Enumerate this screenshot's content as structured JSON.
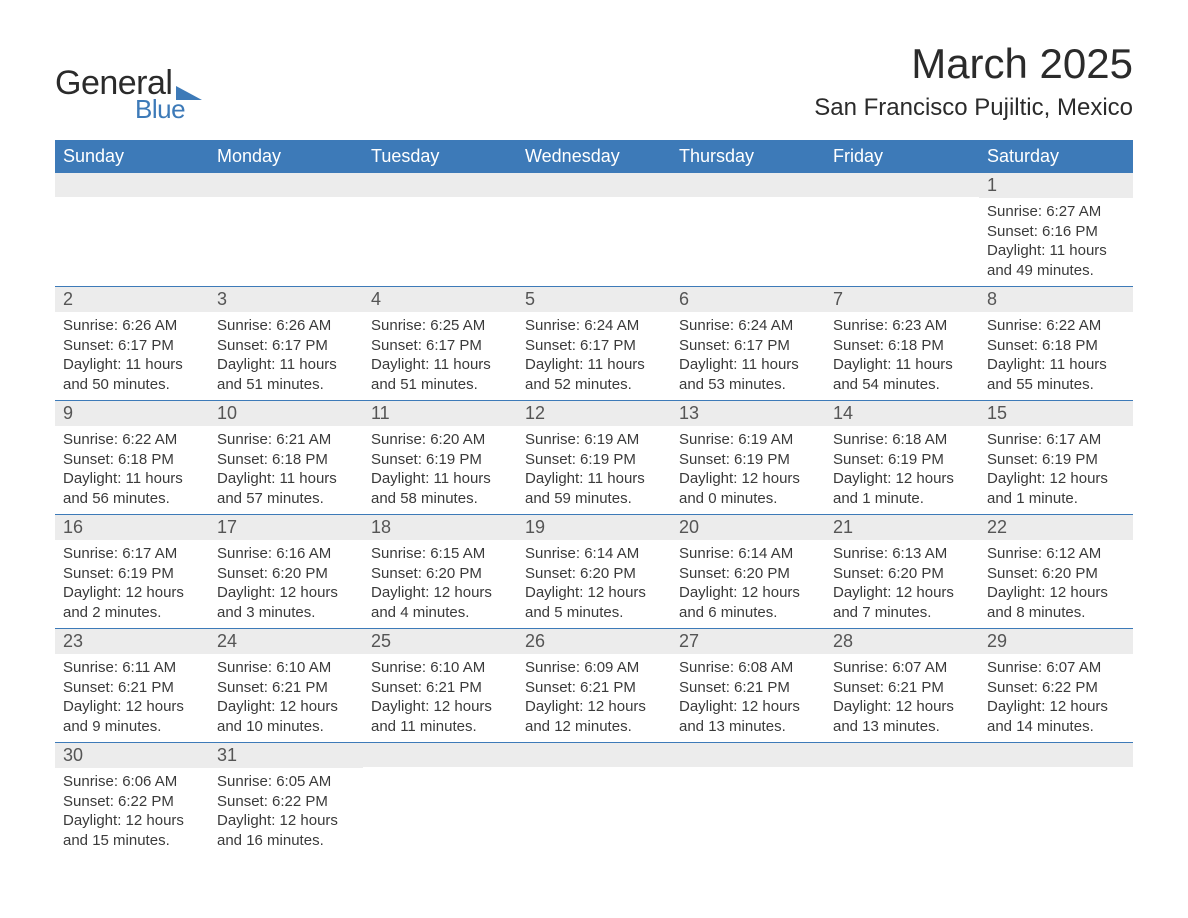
{
  "logo": {
    "text1": "General",
    "text2": "Blue",
    "shape_color": "#3d7ab8"
  },
  "header": {
    "month_title": "March 2025",
    "location": "San Francisco Pujiltic, Mexico"
  },
  "colors": {
    "header_bg": "#3d7ab8",
    "header_text": "#ffffff",
    "daynum_bg": "#ececec",
    "daynum_text": "#555555",
    "body_text": "#3a3a3a",
    "divider": "#3d7ab8"
  },
  "day_headers": [
    "Sunday",
    "Monday",
    "Tuesday",
    "Wednesday",
    "Thursday",
    "Friday",
    "Saturday"
  ],
  "weeks": [
    [
      {
        "num": "",
        "sunrise": "",
        "sunset": "",
        "daylight1": "",
        "daylight2": ""
      },
      {
        "num": "",
        "sunrise": "",
        "sunset": "",
        "daylight1": "",
        "daylight2": ""
      },
      {
        "num": "",
        "sunrise": "",
        "sunset": "",
        "daylight1": "",
        "daylight2": ""
      },
      {
        "num": "",
        "sunrise": "",
        "sunset": "",
        "daylight1": "",
        "daylight2": ""
      },
      {
        "num": "",
        "sunrise": "",
        "sunset": "",
        "daylight1": "",
        "daylight2": ""
      },
      {
        "num": "",
        "sunrise": "",
        "sunset": "",
        "daylight1": "",
        "daylight2": ""
      },
      {
        "num": "1",
        "sunrise": "Sunrise: 6:27 AM",
        "sunset": "Sunset: 6:16 PM",
        "daylight1": "Daylight: 11 hours",
        "daylight2": "and 49 minutes."
      }
    ],
    [
      {
        "num": "2",
        "sunrise": "Sunrise: 6:26 AM",
        "sunset": "Sunset: 6:17 PM",
        "daylight1": "Daylight: 11 hours",
        "daylight2": "and 50 minutes."
      },
      {
        "num": "3",
        "sunrise": "Sunrise: 6:26 AM",
        "sunset": "Sunset: 6:17 PM",
        "daylight1": "Daylight: 11 hours",
        "daylight2": "and 51 minutes."
      },
      {
        "num": "4",
        "sunrise": "Sunrise: 6:25 AM",
        "sunset": "Sunset: 6:17 PM",
        "daylight1": "Daylight: 11 hours",
        "daylight2": "and 51 minutes."
      },
      {
        "num": "5",
        "sunrise": "Sunrise: 6:24 AM",
        "sunset": "Sunset: 6:17 PM",
        "daylight1": "Daylight: 11 hours",
        "daylight2": "and 52 minutes."
      },
      {
        "num": "6",
        "sunrise": "Sunrise: 6:24 AM",
        "sunset": "Sunset: 6:17 PM",
        "daylight1": "Daylight: 11 hours",
        "daylight2": "and 53 minutes."
      },
      {
        "num": "7",
        "sunrise": "Sunrise: 6:23 AM",
        "sunset": "Sunset: 6:18 PM",
        "daylight1": "Daylight: 11 hours",
        "daylight2": "and 54 minutes."
      },
      {
        "num": "8",
        "sunrise": "Sunrise: 6:22 AM",
        "sunset": "Sunset: 6:18 PM",
        "daylight1": "Daylight: 11 hours",
        "daylight2": "and 55 minutes."
      }
    ],
    [
      {
        "num": "9",
        "sunrise": "Sunrise: 6:22 AM",
        "sunset": "Sunset: 6:18 PM",
        "daylight1": "Daylight: 11 hours",
        "daylight2": "and 56 minutes."
      },
      {
        "num": "10",
        "sunrise": "Sunrise: 6:21 AM",
        "sunset": "Sunset: 6:18 PM",
        "daylight1": "Daylight: 11 hours",
        "daylight2": "and 57 minutes."
      },
      {
        "num": "11",
        "sunrise": "Sunrise: 6:20 AM",
        "sunset": "Sunset: 6:19 PM",
        "daylight1": "Daylight: 11 hours",
        "daylight2": "and 58 minutes."
      },
      {
        "num": "12",
        "sunrise": "Sunrise: 6:19 AM",
        "sunset": "Sunset: 6:19 PM",
        "daylight1": "Daylight: 11 hours",
        "daylight2": "and 59 minutes."
      },
      {
        "num": "13",
        "sunrise": "Sunrise: 6:19 AM",
        "sunset": "Sunset: 6:19 PM",
        "daylight1": "Daylight: 12 hours",
        "daylight2": "and 0 minutes."
      },
      {
        "num": "14",
        "sunrise": "Sunrise: 6:18 AM",
        "sunset": "Sunset: 6:19 PM",
        "daylight1": "Daylight: 12 hours",
        "daylight2": "and 1 minute."
      },
      {
        "num": "15",
        "sunrise": "Sunrise: 6:17 AM",
        "sunset": "Sunset: 6:19 PM",
        "daylight1": "Daylight: 12 hours",
        "daylight2": "and 1 minute."
      }
    ],
    [
      {
        "num": "16",
        "sunrise": "Sunrise: 6:17 AM",
        "sunset": "Sunset: 6:19 PM",
        "daylight1": "Daylight: 12 hours",
        "daylight2": "and 2 minutes."
      },
      {
        "num": "17",
        "sunrise": "Sunrise: 6:16 AM",
        "sunset": "Sunset: 6:20 PM",
        "daylight1": "Daylight: 12 hours",
        "daylight2": "and 3 minutes."
      },
      {
        "num": "18",
        "sunrise": "Sunrise: 6:15 AM",
        "sunset": "Sunset: 6:20 PM",
        "daylight1": "Daylight: 12 hours",
        "daylight2": "and 4 minutes."
      },
      {
        "num": "19",
        "sunrise": "Sunrise: 6:14 AM",
        "sunset": "Sunset: 6:20 PM",
        "daylight1": "Daylight: 12 hours",
        "daylight2": "and 5 minutes."
      },
      {
        "num": "20",
        "sunrise": "Sunrise: 6:14 AM",
        "sunset": "Sunset: 6:20 PM",
        "daylight1": "Daylight: 12 hours",
        "daylight2": "and 6 minutes."
      },
      {
        "num": "21",
        "sunrise": "Sunrise: 6:13 AM",
        "sunset": "Sunset: 6:20 PM",
        "daylight1": "Daylight: 12 hours",
        "daylight2": "and 7 minutes."
      },
      {
        "num": "22",
        "sunrise": "Sunrise: 6:12 AM",
        "sunset": "Sunset: 6:20 PM",
        "daylight1": "Daylight: 12 hours",
        "daylight2": "and 8 minutes."
      }
    ],
    [
      {
        "num": "23",
        "sunrise": "Sunrise: 6:11 AM",
        "sunset": "Sunset: 6:21 PM",
        "daylight1": "Daylight: 12 hours",
        "daylight2": "and 9 minutes."
      },
      {
        "num": "24",
        "sunrise": "Sunrise: 6:10 AM",
        "sunset": "Sunset: 6:21 PM",
        "daylight1": "Daylight: 12 hours",
        "daylight2": "and 10 minutes."
      },
      {
        "num": "25",
        "sunrise": "Sunrise: 6:10 AM",
        "sunset": "Sunset: 6:21 PM",
        "daylight1": "Daylight: 12 hours",
        "daylight2": "and 11 minutes."
      },
      {
        "num": "26",
        "sunrise": "Sunrise: 6:09 AM",
        "sunset": "Sunset: 6:21 PM",
        "daylight1": "Daylight: 12 hours",
        "daylight2": "and 12 minutes."
      },
      {
        "num": "27",
        "sunrise": "Sunrise: 6:08 AM",
        "sunset": "Sunset: 6:21 PM",
        "daylight1": "Daylight: 12 hours",
        "daylight2": "and 13 minutes."
      },
      {
        "num": "28",
        "sunrise": "Sunrise: 6:07 AM",
        "sunset": "Sunset: 6:21 PM",
        "daylight1": "Daylight: 12 hours",
        "daylight2": "and 13 minutes."
      },
      {
        "num": "29",
        "sunrise": "Sunrise: 6:07 AM",
        "sunset": "Sunset: 6:22 PM",
        "daylight1": "Daylight: 12 hours",
        "daylight2": "and 14 minutes."
      }
    ],
    [
      {
        "num": "30",
        "sunrise": "Sunrise: 6:06 AM",
        "sunset": "Sunset: 6:22 PM",
        "daylight1": "Daylight: 12 hours",
        "daylight2": "and 15 minutes."
      },
      {
        "num": "31",
        "sunrise": "Sunrise: 6:05 AM",
        "sunset": "Sunset: 6:22 PM",
        "daylight1": "Daylight: 12 hours",
        "daylight2": "and 16 minutes."
      },
      {
        "num": "",
        "sunrise": "",
        "sunset": "",
        "daylight1": "",
        "daylight2": ""
      },
      {
        "num": "",
        "sunrise": "",
        "sunset": "",
        "daylight1": "",
        "daylight2": ""
      },
      {
        "num": "",
        "sunrise": "",
        "sunset": "",
        "daylight1": "",
        "daylight2": ""
      },
      {
        "num": "",
        "sunrise": "",
        "sunset": "",
        "daylight1": "",
        "daylight2": ""
      },
      {
        "num": "",
        "sunrise": "",
        "sunset": "",
        "daylight1": "",
        "daylight2": ""
      }
    ]
  ]
}
